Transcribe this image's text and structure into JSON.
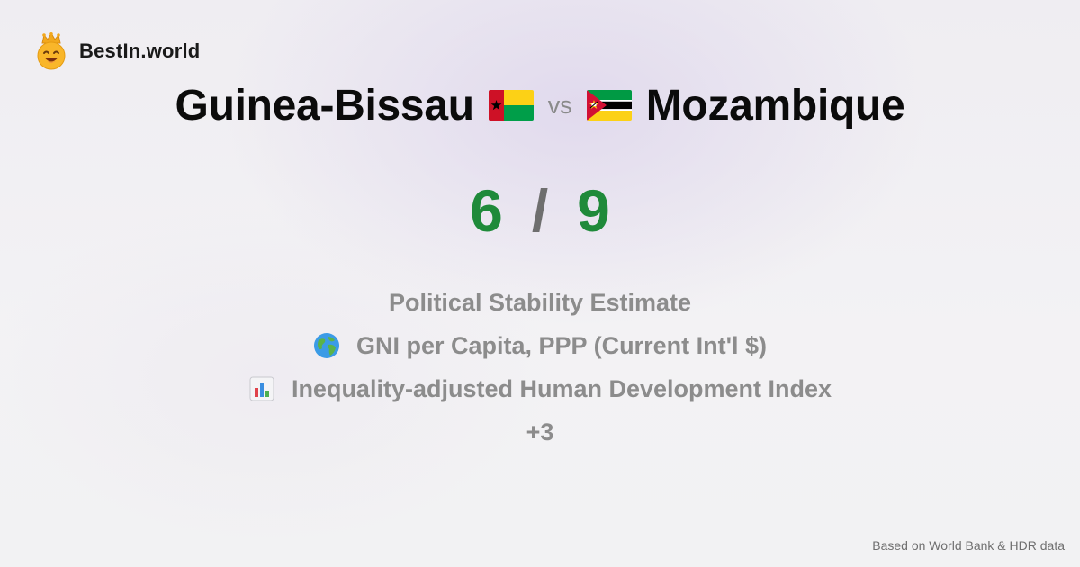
{
  "brand": {
    "name": "BestIn.world",
    "logo_icon": "crowned-smiley-icon"
  },
  "comparison": {
    "left_country": "Guinea-Bissau",
    "left_flag_icon": "guinea-bissau-flag-icon",
    "vs_label": "vs",
    "right_country": "Mozambique",
    "right_flag_icon": "mozambique-flag-icon"
  },
  "score": {
    "left": "6",
    "separator": "/",
    "right": "9",
    "color": "#1f8a3a"
  },
  "metrics": [
    {
      "label": "Political Stability Estimate",
      "icon": ""
    },
    {
      "label": "GNI per Capita, PPP (Current Int'l $)",
      "icon": "globe-icon"
    },
    {
      "label": "Inequality-adjusted Human Development Index",
      "icon": "bar-chart-icon"
    }
  ],
  "more_label": "+3",
  "footer": {
    "source": "Based on World Bank & HDR data"
  }
}
